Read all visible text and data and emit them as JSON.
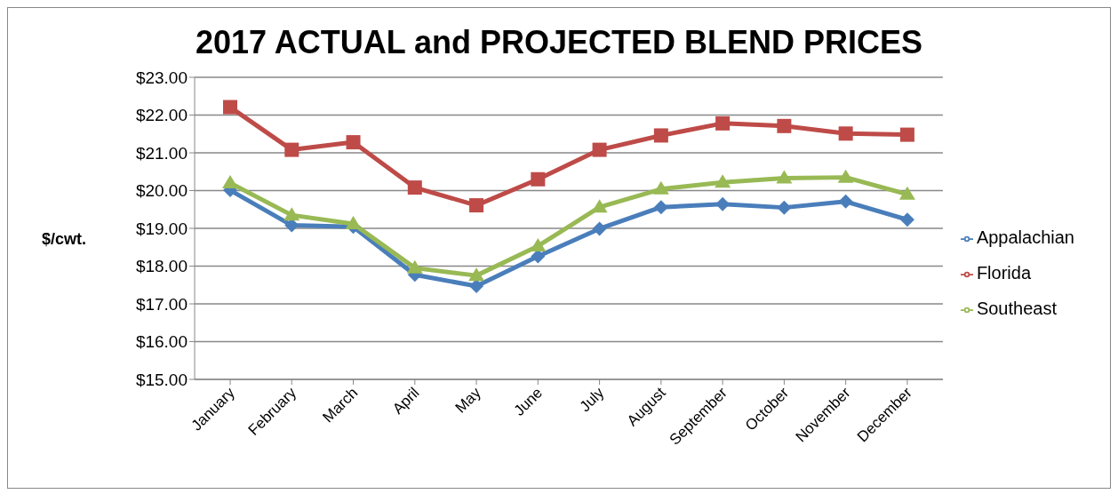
{
  "chart_data": {
    "type": "line",
    "title": "2017 ACTUAL and PROJECTED BLEND PRICES",
    "ylabel": "$/cwt.",
    "categories": [
      "January",
      "February",
      "March",
      "April",
      "May",
      "June",
      "July",
      "August",
      "September",
      "October",
      "November",
      "December"
    ],
    "series": [
      {
        "name": "Appalachian",
        "color": "#4a7ebb",
        "marker": "diamond",
        "values": [
          20.01,
          19.08,
          19.04,
          17.77,
          17.47,
          18.26,
          18.99,
          19.56,
          19.64,
          19.55,
          19.71,
          19.23
        ]
      },
      {
        "name": "Florida",
        "color": "#be4b48",
        "marker": "square",
        "values": [
          22.21,
          21.08,
          21.28,
          20.08,
          19.61,
          20.3,
          21.08,
          21.46,
          21.78,
          21.71,
          21.51,
          21.48
        ]
      },
      {
        "name": "Southeast",
        "color": "#98b954",
        "marker": "triangle",
        "values": [
          20.2,
          19.35,
          19.12,
          17.95,
          17.75,
          18.53,
          19.56,
          20.04,
          20.22,
          20.33,
          20.35,
          19.9
        ]
      }
    ],
    "ylim": [
      15,
      23
    ],
    "yticks": [
      {
        "value": 15,
        "label": "$15.00"
      },
      {
        "value": 16,
        "label": "$16.00"
      },
      {
        "value": 17,
        "label": "$17.00"
      },
      {
        "value": 18,
        "label": "$18.00"
      },
      {
        "value": 19,
        "label": "$19.00"
      },
      {
        "value": 20,
        "label": "$20.00"
      },
      {
        "value": 21,
        "label": "$21.00"
      },
      {
        "value": 22,
        "label": "$22.00"
      },
      {
        "value": 23,
        "label": "$23.00"
      }
    ],
    "grid": "y",
    "legend": "right"
  }
}
